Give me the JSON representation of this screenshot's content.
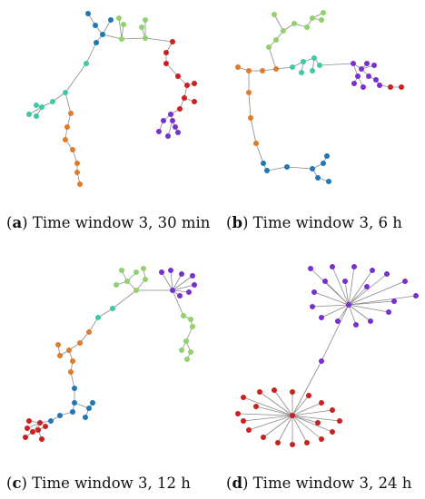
{
  "colors": {
    "blue": "#1f77b4",
    "green": "#8fd16a",
    "teal": "#3cc9a6",
    "orange": "#e07b2a",
    "red": "#cc1f1f",
    "purple": "#7a2fd0",
    "edge": "#8a8a8a"
  },
  "panels": [
    {
      "id": "a",
      "caption_letter": "a",
      "caption_text": " Time window 3, 30 min"
    },
    {
      "id": "b",
      "caption_letter": "b",
      "caption_text": " Time window 3, 6 h"
    },
    {
      "id": "c",
      "caption_letter": "c",
      "caption_text": " Time window 3, 12 h"
    },
    {
      "id": "d",
      "caption_letter": "d",
      "caption_text": " Time window 3, 24 h"
    }
  ]
}
